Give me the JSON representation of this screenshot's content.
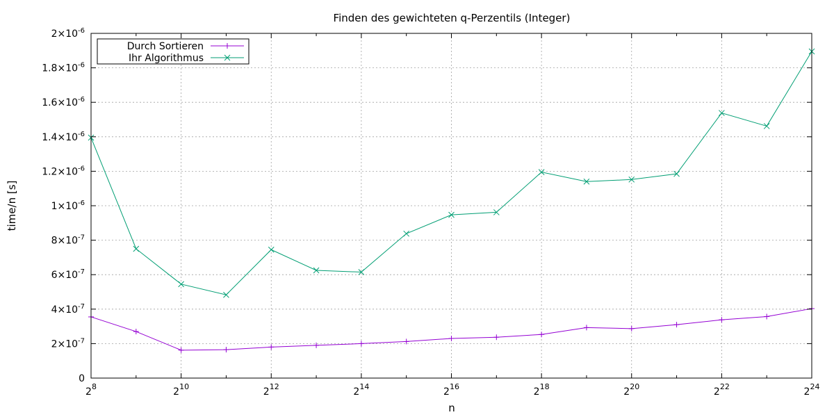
{
  "chart_data": {
    "type": "line",
    "title": "Finden des gewichteten q-Perzentils (Integer)",
    "xlabel": "n",
    "ylabel": "time/n [s]",
    "x_scale": "log2",
    "x": [
      8,
      9,
      10,
      11,
      12,
      13,
      14,
      15,
      16,
      17,
      18,
      19,
      20,
      21,
      22,
      23,
      24
    ],
    "xlim": [
      8,
      24
    ],
    "ylim": [
      0,
      2e-06
    ],
    "x_ticks": [
      {
        "base": "2",
        "exp": "8"
      },
      {
        "base": "2",
        "exp": "10"
      },
      {
        "base": "2",
        "exp": "12"
      },
      {
        "base": "2",
        "exp": "14"
      },
      {
        "base": "2",
        "exp": "16"
      },
      {
        "base": "2",
        "exp": "18"
      },
      {
        "base": "2",
        "exp": "20"
      },
      {
        "base": "2",
        "exp": "22"
      },
      {
        "base": "2",
        "exp": "24"
      }
    ],
    "y_ticks": [
      {
        "mant": "0",
        "exp": ""
      },
      {
        "mant": "2×10",
        "exp": "-7"
      },
      {
        "mant": "4×10",
        "exp": "-7"
      },
      {
        "mant": "6×10",
        "exp": "-7"
      },
      {
        "mant": "8×10",
        "exp": "-7"
      },
      {
        "mant": "1×10",
        "exp": "-6"
      },
      {
        "mant": "1.2×10",
        "exp": "-6"
      },
      {
        "mant": "1.4×10",
        "exp": "-6"
      },
      {
        "mant": "1.6×10",
        "exp": "-6"
      },
      {
        "mant": "1.8×10",
        "exp": "-6"
      },
      {
        "mant": "2×10",
        "exp": "-6"
      }
    ],
    "grid": true,
    "legend_position": "top-left",
    "series": [
      {
        "name": "Durch Sortieren",
        "color": "#9400d3",
        "marker": "plus",
        "values": [
          3.55e-07,
          2.7e-07,
          1.62e-07,
          1.65e-07,
          1.8e-07,
          1.9e-07,
          2e-07,
          2.12e-07,
          2.3e-07,
          2.37e-07,
          2.53e-07,
          2.93e-07,
          2.87e-07,
          3.1e-07,
          3.38e-07,
          3.57e-07,
          4.03e-07
        ]
      },
      {
        "name": "Ihr Algorithmus",
        "color": "#009e73",
        "marker": "cross",
        "values": [
          1.395e-06,
          7.5e-07,
          5.45e-07,
          4.83e-07,
          7.45e-07,
          6.25e-07,
          6.15e-07,
          8.38e-07,
          9.47e-07,
          9.62e-07,
          1.195e-06,
          1.14e-06,
          1.152e-06,
          1.185e-06,
          1.538e-06,
          1.462e-06,
          1.895e-06
        ]
      }
    ]
  }
}
